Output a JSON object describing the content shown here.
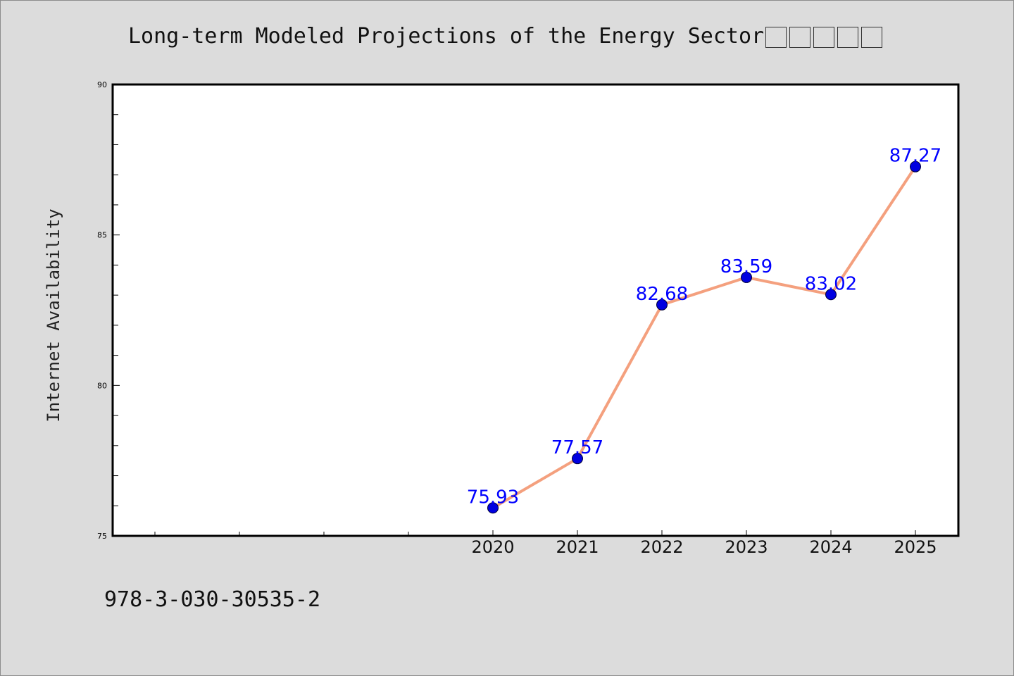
{
  "chart_data": {
    "type": "line",
    "title": "Long-term Modeled Projections of the Energy Sector",
    "title_missing_glyphs": 5,
    "xlabel": "",
    "ylabel": "Internet Availability",
    "categories": [
      "2020",
      "2021",
      "2022",
      "2023",
      "2024",
      "2025"
    ],
    "series": [
      {
        "values": [
          75.93,
          77.57,
          82.68,
          83.59,
          83.02,
          87.27
        ],
        "data_labels": [
          "75.93",
          "77.57",
          "82.68",
          "83.59",
          "83.02",
          "87.27"
        ],
        "line_color": "#f4a07e",
        "marker_color": "#0000e0"
      }
    ],
    "ylim": [
      75,
      90
    ],
    "yticks": [
      "75",
      "80",
      "85",
      "90"
    ],
    "y_minor_step": 1,
    "x_extra_minor_ticks_left": 4,
    "grid": false,
    "legend": "none",
    "label_color": "#0000ff"
  },
  "footer": {
    "isbn": "978-3-030-30535-2"
  }
}
